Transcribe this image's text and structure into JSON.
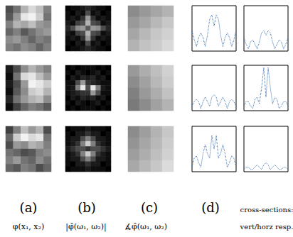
{
  "figure": {
    "panel_labels": [
      "(a)",
      "(b)",
      "(c)",
      "(d)"
    ],
    "d_sublabel": "cross-sections:",
    "captions": [
      "φ(x₁, x₂)",
      "|φ̂(ω₁, ω₂)|",
      "∡φ̂(ω₁, ω₂)",
      "vert/horz resp."
    ]
  },
  "chart_data": [
    {
      "type": "heatmap",
      "color_range": [
        0,
        1
      ],
      "cells": [
        [
          0.3,
          0.45,
          0.7,
          0.85,
          0.75,
          0.5
        ],
        [
          0.35,
          0.6,
          0.9,
          0.95,
          0.8,
          0.45
        ],
        [
          0.5,
          0.7,
          0.65,
          0.75,
          0.6,
          0.55
        ],
        [
          0.4,
          0.5,
          0.35,
          0.45,
          0.55,
          0.6
        ],
        [
          0.55,
          0.6,
          0.5,
          0.4,
          0.5,
          0.45
        ],
        [
          0.5,
          0.45,
          0.55,
          0.5,
          0.4,
          0.5
        ]
      ]
    },
    {
      "type": "heatmap",
      "color_range": [
        0,
        1
      ],
      "cells": [
        [
          0,
          0.05,
          0.05,
          0.1,
          0.15,
          0.1,
          0.05,
          0.05,
          0
        ],
        [
          0.05,
          0,
          0.1,
          0.05,
          0.3,
          0.05,
          0.1,
          0,
          0.05
        ],
        [
          0.05,
          0.1,
          0.05,
          0.2,
          0.6,
          0.2,
          0.05,
          0.1,
          0.05
        ],
        [
          0.1,
          0.05,
          0.25,
          0.3,
          0.7,
          0.3,
          0.25,
          0.05,
          0.1
        ],
        [
          0.15,
          0.3,
          0.55,
          0.6,
          0.35,
          0.6,
          0.55,
          0.3,
          0.15
        ],
        [
          0.1,
          0.05,
          0.25,
          0.3,
          0.7,
          0.3,
          0.25,
          0.05,
          0.1
        ],
        [
          0.05,
          0.1,
          0.05,
          0.2,
          0.6,
          0.2,
          0.05,
          0.1,
          0.05
        ],
        [
          0.05,
          0,
          0.1,
          0.05,
          0.3,
          0.05,
          0.1,
          0,
          0.05
        ],
        [
          0,
          0.05,
          0.05,
          0.1,
          0.15,
          0.1,
          0.05,
          0.05,
          0
        ]
      ]
    },
    {
      "type": "heatmap",
      "color_range": [
        0,
        1
      ],
      "cells": [
        [
          0.55,
          0.6,
          0.65,
          0.7
        ],
        [
          0.6,
          0.65,
          0.72,
          0.78
        ],
        [
          0.65,
          0.72,
          0.78,
          0.82
        ],
        [
          0.7,
          0.76,
          0.8,
          0.85
        ]
      ]
    },
    {
      "type": "line",
      "color": "#3a6fb0",
      "line_style": "dotted",
      "tick_labels": false,
      "xlim": [
        -10,
        10
      ],
      "ylim": [
        0,
        1
      ],
      "x": [
        -10,
        -9,
        -8,
        -7,
        -6,
        -5,
        -4,
        -3,
        -2,
        -1,
        0,
        1,
        2,
        3,
        4,
        5,
        6,
        7,
        8,
        9,
        10
      ],
      "values": [
        0.45,
        0.25,
        0.1,
        0.3,
        0.4,
        0.3,
        0.1,
        0.35,
        0.7,
        0.8,
        0.55,
        0.8,
        0.7,
        0.35,
        0.1,
        0.3,
        0.4,
        0.3,
        0.1,
        0.25,
        0.45
      ]
    },
    {
      "type": "line",
      "color": "#3a6fb0",
      "line_style": "dotted",
      "tick_labels": false,
      "xlim": [
        -10,
        10
      ],
      "ylim": [
        0,
        1
      ],
      "x": [
        -10,
        -9,
        -8,
        -7,
        -6,
        -5,
        -4,
        -3,
        -2,
        -1,
        0,
        1,
        2,
        3,
        4,
        5,
        6,
        7,
        8,
        9,
        10
      ],
      "values": [
        0.3,
        0.15,
        0.05,
        0.2,
        0.25,
        0.15,
        0.05,
        0.2,
        0.4,
        0.45,
        0.35,
        0.45,
        0.4,
        0.2,
        0.05,
        0.15,
        0.25,
        0.2,
        0.05,
        0.15,
        0.3
      ]
    },
    {
      "type": "heatmap",
      "color_range": [
        0,
        1
      ],
      "cells": [
        [
          0.1,
          0.3,
          0.55,
          0.7,
          0.6,
          0.5
        ],
        [
          0.05,
          0.45,
          0.85,
          0.9,
          0.75,
          0.6
        ],
        [
          0.1,
          0.3,
          0.6,
          0.95,
          0.9,
          0.8
        ],
        [
          0.05,
          0.35,
          0.55,
          0.8,
          0.85,
          0.7
        ],
        [
          0.15,
          0.45,
          0.6,
          0.7,
          0.75,
          0.55
        ],
        [
          0.05,
          0.25,
          0.4,
          0.5,
          0.45,
          0.35
        ]
      ]
    },
    {
      "type": "heatmap",
      "color_range": [
        0,
        1
      ],
      "cells": [
        [
          0,
          0.05,
          0,
          0.05,
          0.05,
          0.05,
          0,
          0.05,
          0
        ],
        [
          0.05,
          0,
          0.1,
          0.05,
          0,
          0.05,
          0.1,
          0,
          0.05
        ],
        [
          0,
          0.1,
          0.05,
          0.15,
          0.1,
          0.15,
          0.05,
          0.1,
          0
        ],
        [
          0.05,
          0.05,
          0.3,
          0.6,
          0.2,
          0.15,
          0.1,
          0.05,
          0.05
        ],
        [
          0.05,
          0.1,
          0.5,
          0.9,
          0.3,
          0.9,
          0.5,
          0.1,
          0.05
        ],
        [
          0.05,
          0.1,
          0.15,
          0.2,
          0.2,
          0.6,
          0.3,
          0.05,
          0.05
        ],
        [
          0,
          0.1,
          0.05,
          0.15,
          0.1,
          0.15,
          0.05,
          0.1,
          0
        ],
        [
          0.05,
          0,
          0.1,
          0.05,
          0,
          0.05,
          0.1,
          0,
          0.05
        ],
        [
          0,
          0.05,
          0,
          0.05,
          0.05,
          0.05,
          0,
          0.05,
          0
        ]
      ]
    },
    {
      "type": "heatmap",
      "color_range": [
        0,
        1
      ],
      "cells": [
        [
          0.6,
          0.68,
          0.75,
          0.82
        ],
        [
          0.55,
          0.63,
          0.72,
          0.8
        ],
        [
          0.5,
          0.6,
          0.68,
          0.76
        ],
        [
          0.48,
          0.55,
          0.63,
          0.7
        ]
      ]
    },
    {
      "type": "line",
      "color": "#3a6fb0",
      "line_style": "dotted",
      "tick_labels": false,
      "xlim": [
        -10,
        10
      ],
      "ylim": [
        0,
        1
      ],
      "x": [
        -10,
        -9,
        -8,
        -7,
        -6,
        -5,
        -4,
        -3,
        -2,
        -1,
        0,
        1,
        2,
        3,
        4,
        5,
        6,
        7,
        8,
        9,
        10
      ],
      "values": [
        0.1,
        0.2,
        0.25,
        0.2,
        0.05,
        0.2,
        0.3,
        0.2,
        0.1,
        0.3,
        0.35,
        0.3,
        0.1,
        0.2,
        0.3,
        0.2,
        0.05,
        0.2,
        0.25,
        0.2,
        0.1
      ]
    },
    {
      "type": "line",
      "color": "#3a6fb0",
      "line_style": "dotted",
      "tick_labels": false,
      "xlim": [
        -10,
        10
      ],
      "ylim": [
        0,
        1
      ],
      "x": [
        -10,
        -9,
        -8,
        -7,
        -6,
        -5,
        -4,
        -3,
        -2,
        -1,
        0,
        1,
        2,
        3,
        4,
        5,
        6,
        7,
        8,
        9,
        10
      ],
      "values": [
        0.1,
        0.2,
        0.2,
        0.1,
        0.05,
        0.25,
        0.3,
        0.15,
        0.5,
        0.95,
        0.3,
        0.95,
        0.5,
        0.15,
        0.3,
        0.25,
        0.05,
        0.1,
        0.2,
        0.2,
        0.1
      ]
    },
    {
      "type": "heatmap",
      "color_range": [
        0,
        1
      ],
      "cells": [
        [
          0.25,
          0.5,
          0.75,
          0.6,
          0.7,
          0.3
        ],
        [
          0.4,
          0.8,
          0.95,
          0.85,
          0.9,
          0.45
        ],
        [
          0.3,
          0.6,
          0.55,
          0.7,
          0.65,
          0.5
        ],
        [
          0.45,
          0.4,
          0.3,
          0.35,
          0.5,
          0.55
        ],
        [
          0.5,
          0.6,
          0.45,
          0.4,
          0.55,
          0.45
        ],
        [
          0.4,
          0.35,
          0.5,
          0.45,
          0.3,
          0.4
        ]
      ]
    },
    {
      "type": "heatmap",
      "color_range": [
        0,
        1
      ],
      "cells": [
        [
          0,
          0.05,
          0.05,
          0.05,
          0.1,
          0.05,
          0.05,
          0.05,
          0
        ],
        [
          0.05,
          0,
          0.1,
          0.1,
          0.2,
          0.1,
          0.1,
          0,
          0.05
        ],
        [
          0.05,
          0.1,
          0.1,
          0.3,
          0.5,
          0.3,
          0.1,
          0.1,
          0.05
        ],
        [
          0.05,
          0.1,
          0.2,
          0.5,
          0.8,
          0.5,
          0.2,
          0.1,
          0.05
        ],
        [
          0.1,
          0.2,
          0.3,
          0.3,
          0.2,
          0.3,
          0.3,
          0.2,
          0.1
        ],
        [
          0.05,
          0.1,
          0.2,
          0.5,
          0.8,
          0.5,
          0.2,
          0.1,
          0.05
        ],
        [
          0.05,
          0.1,
          0.1,
          0.3,
          0.5,
          0.3,
          0.1,
          0.1,
          0.05
        ],
        [
          0.05,
          0,
          0.1,
          0.1,
          0.2,
          0.1,
          0.1,
          0,
          0.05
        ],
        [
          0,
          0.05,
          0.05,
          0.05,
          0.1,
          0.05,
          0.05,
          0.05,
          0
        ]
      ]
    },
    {
      "type": "heatmap",
      "color_range": [
        0,
        1
      ],
      "cells": [
        [
          0.55,
          0.62,
          0.7,
          0.78
        ],
        [
          0.58,
          0.65,
          0.72,
          0.8
        ],
        [
          0.62,
          0.68,
          0.75,
          0.82
        ],
        [
          0.66,
          0.72,
          0.78,
          0.86
        ]
      ]
    },
    {
      "type": "line",
      "color": "#3a6fb0",
      "line_style": "dotted",
      "tick_labels": false,
      "xlim": [
        -10,
        10
      ],
      "ylim": [
        0,
        1
      ],
      "x": [
        -10,
        -9,
        -8,
        -7,
        -6,
        -5,
        -4,
        -3,
        -2,
        -1,
        0,
        1,
        2,
        3,
        4,
        5,
        6,
        7,
        8,
        9,
        10
      ],
      "values": [
        0.1,
        0.3,
        0.35,
        0.2,
        0.1,
        0.4,
        0.6,
        0.4,
        0.3,
        0.8,
        0.5,
        0.8,
        0.3,
        0.4,
        0.6,
        0.4,
        0.1,
        0.2,
        0.35,
        0.3,
        0.1
      ]
    },
    {
      "type": "line",
      "color": "#3a6fb0",
      "line_style": "dotted",
      "tick_labels": false,
      "xlim": [
        -10,
        10
      ],
      "ylim": [
        0,
        1
      ],
      "x": [
        -10,
        -9,
        -8,
        -7,
        -6,
        -5,
        -4,
        -3,
        -2,
        -1,
        0,
        1,
        2,
        3,
        4,
        5,
        6,
        7,
        8,
        9,
        10
      ],
      "values": [
        0.05,
        0.1,
        0.1,
        0.05,
        0.05,
        0.1,
        0.15,
        0.1,
        0.05,
        0.15,
        0.2,
        0.15,
        0.05,
        0.1,
        0.15,
        0.1,
        0.05,
        0.05,
        0.1,
        0.1,
        0.05
      ]
    }
  ]
}
